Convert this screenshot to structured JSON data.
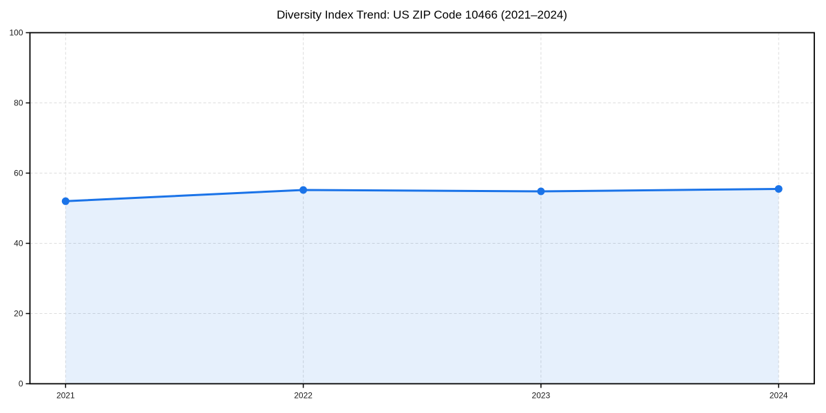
{
  "title": "Diversity Index Trend: US ZIP Code 10466 (2021–2024)",
  "chart_data": {
    "type": "area",
    "title": "Diversity Index Trend: US ZIP Code 10466 (2021–2024)",
    "categories": [
      "2021",
      "2022",
      "2023",
      "2024"
    ],
    "series": [
      {
        "name": "Diversity Index",
        "values": [
          52.0,
          55.2,
          54.8,
          55.5
        ]
      }
    ],
    "xlabel": "",
    "ylabel": "",
    "ylim": [
      0,
      100
    ],
    "yticks": [
      0,
      20,
      40,
      60,
      80,
      100
    ],
    "grid": true,
    "grid_style": "dashed",
    "legend_position": "none",
    "colors": {
      "line": "#1a73e8",
      "marker": "#1a73e8",
      "fill": "rgba(26,115,232,0.11)",
      "grid": "#dcdcdc",
      "axis": "#000000",
      "tick_label": "#1a1a1a",
      "background": "#ffffff"
    }
  }
}
